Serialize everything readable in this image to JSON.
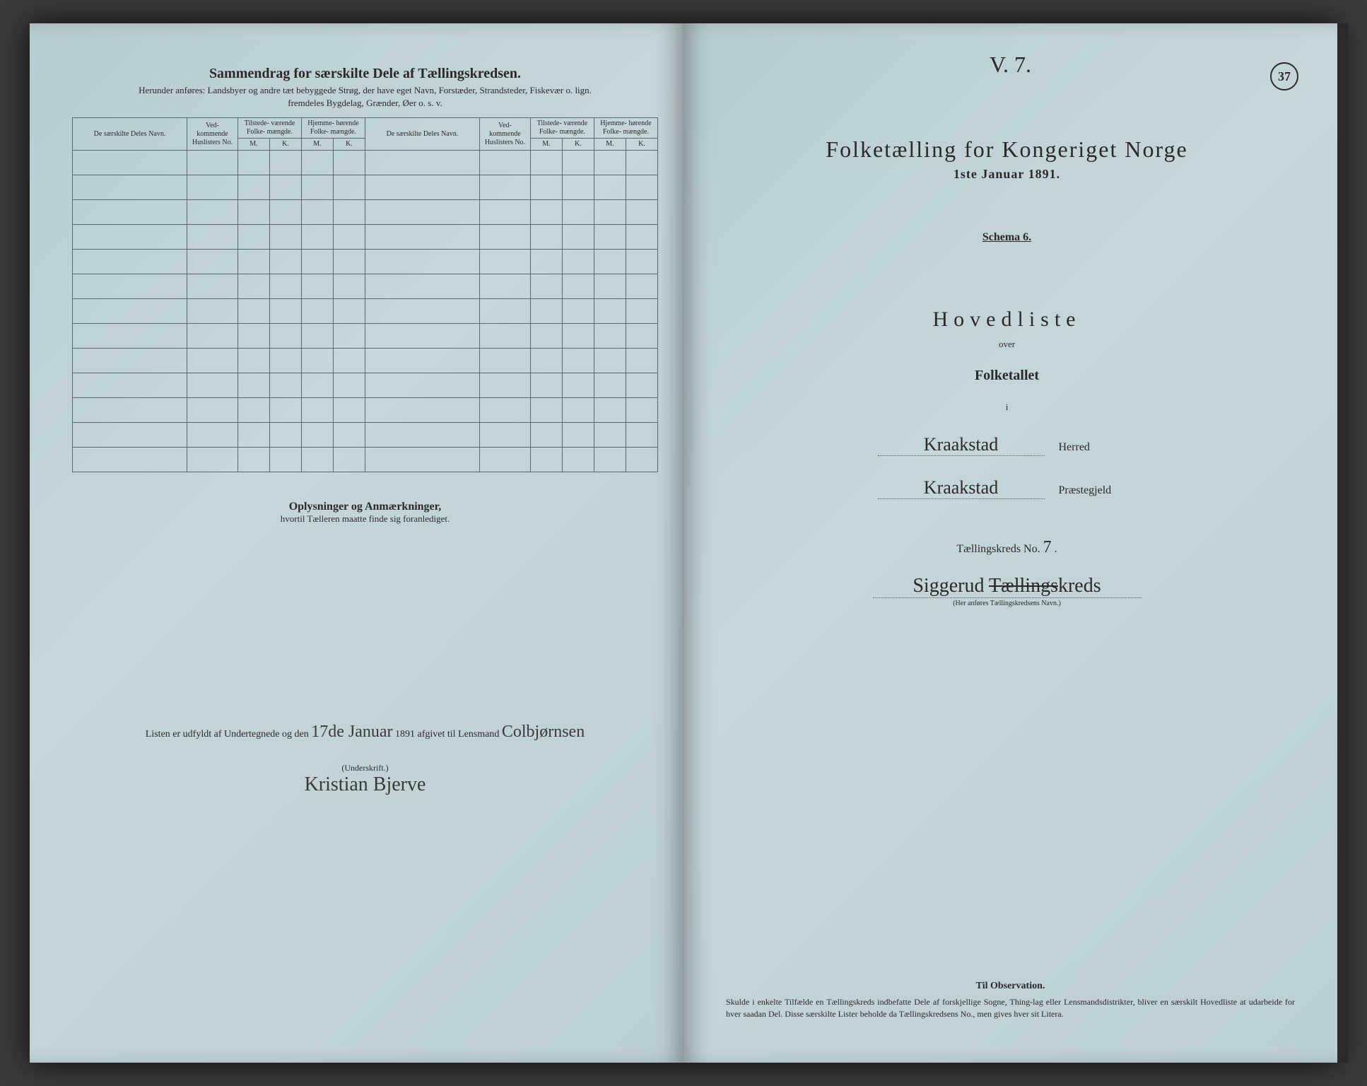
{
  "leftPage": {
    "title": "Sammendrag for særskilte Dele af Tællingskredsen.",
    "subtitle1": "Herunder anføres: Landsbyer og andre tæt bebyggede Strøg, der have eget Navn, Forstæder, Strandsteder, Fiskevær o. lign.",
    "subtitle2": "fremdeles Bygdelag, Grænder, Øer o. s. v.",
    "headers": {
      "nameCol": "De særskilte Deles Navn.",
      "huslCol": "Ved-\nkommende\nHuslisters\nNo.",
      "tilstede": "Tilstede-\nværende\nFolke-\nmængde.",
      "hjemme": "Hjemme-\nhørende\nFolke-\nmængde.",
      "m": "M.",
      "k": "K."
    },
    "emptyRows": 13,
    "oplysTitle": "Oplysninger og Anmærkninger,",
    "oplysSub": "hvortil Tælleren maatte finde sig foranlediget.",
    "listenPrefix": "Listen er udfyldt af Undertegnede og den ",
    "listenDate": "17de Januar",
    "listenYear": " 1891 afgivet til Lensmand ",
    "lensmand": "Colbjørnsen",
    "underskrift": "(Underskrift.)",
    "signature": "Kristian Bjerve"
  },
  "rightPage": {
    "handTop": "V. 7.",
    "pageNum": "37",
    "mainTitle": "Folketælling for Kongeriget Norge",
    "dateLine": "1ste Januar 1891.",
    "schema": "Schema 6.",
    "hovedliste": "Hovedliste",
    "over": "over",
    "folketallet": "Folketallet",
    "i": "i",
    "herredValue": "Kraakstad",
    "herredLabel": "Herred",
    "praesteValue": "Kraakstad",
    "praesteLabel": "Præstegjeld",
    "kredsLabel": "Tællingskreds No.",
    "kredsNo": "7",
    "kredsName": "Siggerud",
    "kredsStrike": "Tællings",
    "kredsSuffix": "kreds",
    "kredsCaption": "(Her anføres Tællingskredsens Navn.)",
    "obsTitle": "Til Observation.",
    "obsText": "Skulde i enkelte Tilfælde en Tællingskreds indbefatte Dele af forskjellige Sogne, Thing-lag eller Lensmandsdistrikter, bliver en særskilt Hovedliste at udarbeide for hver saadan Del. Disse særskilte Lister beholde da Tællingskredsens No., men gives hver sit Litera."
  }
}
